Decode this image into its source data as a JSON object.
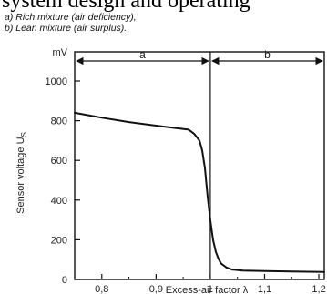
{
  "header": {
    "cutoff_text": "system design and operating"
  },
  "legend": {
    "a": "a) Rich mixture (air deficiency),",
    "b": "b) Lean mixture (air surplus)."
  },
  "chart_data": {
    "type": "line",
    "title": "",
    "xlabel": "Excess-air factor λ",
    "ylabel": "Sensor voltage U",
    "ylabel_sub": "S",
    "yunit": "mV",
    "xlim": [
      0.75,
      1.21
    ],
    "ylim": [
      0,
      1100
    ],
    "x_ticks": [
      0.8,
      0.9,
      1.0,
      1.1,
      1.2
    ],
    "x_tick_labels": [
      "0,8",
      "0,9",
      "1",
      "1,1",
      "1,2"
    ],
    "y_ticks": [
      0,
      200,
      400,
      600,
      800,
      1000
    ],
    "y_tick_labels": [
      "0",
      "200",
      "400",
      "600",
      "800",
      "1000"
    ],
    "vertical_line_x": 1.0,
    "regions": [
      {
        "label": "a",
        "from": 0.75,
        "to": 1.0
      },
      {
        "label": "b",
        "from": 1.0,
        "to": 1.21
      }
    ],
    "series": [
      {
        "x": [
          0.75,
          0.8,
          0.85,
          0.9,
          0.93,
          0.96,
          0.97,
          0.98,
          0.985,
          0.99,
          0.995,
          1.0,
          1.005,
          1.01,
          1.015,
          1.02,
          1.03,
          1.04,
          1.06,
          1.1,
          1.15,
          1.21
        ],
        "values": [
          840,
          815,
          793,
          775,
          765,
          755,
          735,
          700,
          650,
          560,
          420,
          300,
          200,
          140,
          105,
          80,
          60,
          50,
          45,
          42,
          40,
          38
        ]
      }
    ]
  }
}
